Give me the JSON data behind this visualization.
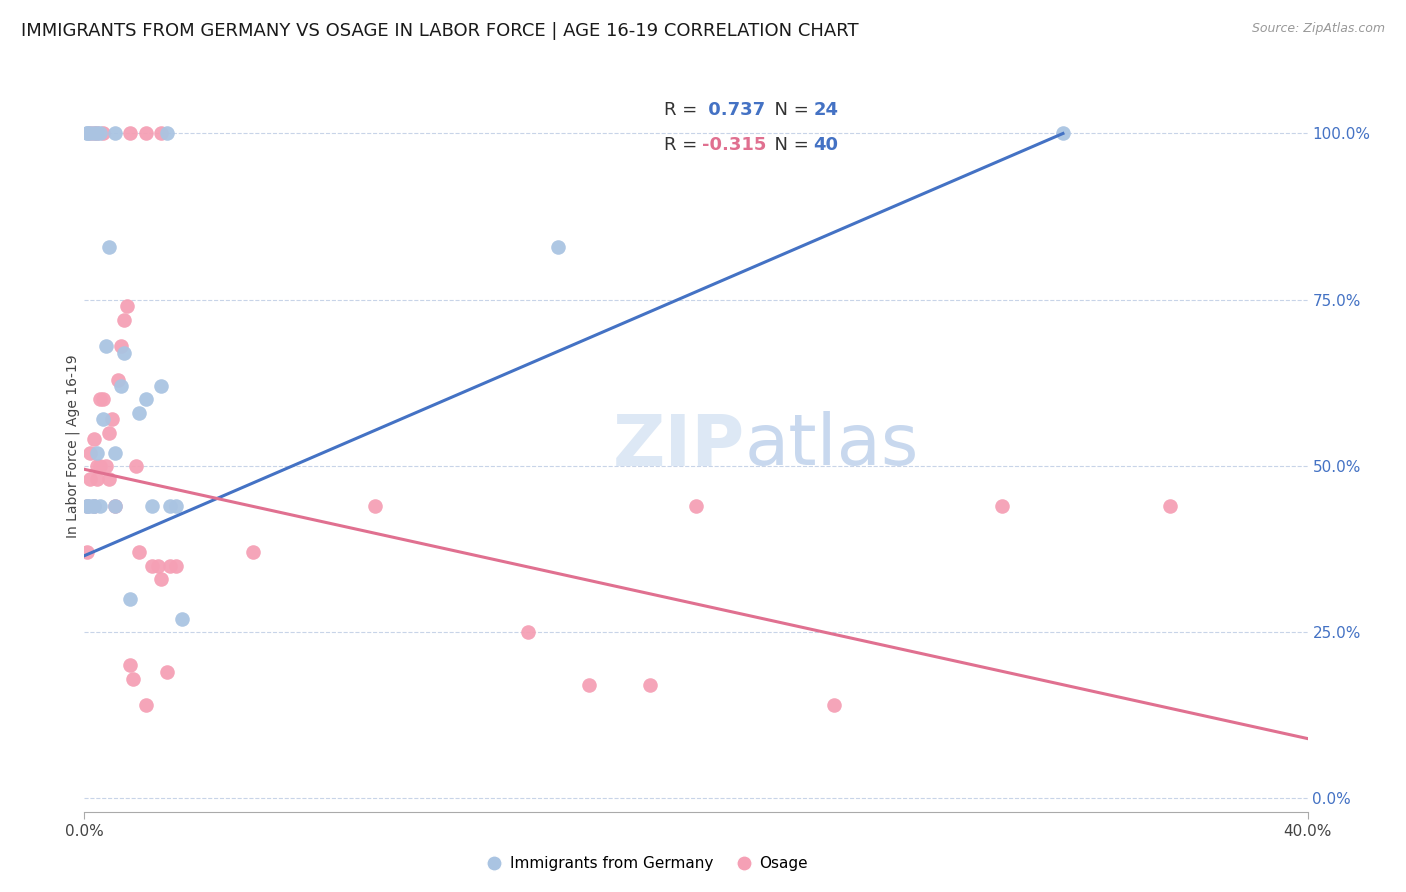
{
  "title": "IMMIGRANTS FROM GERMANY VS OSAGE IN LABOR FORCE | AGE 16-19 CORRELATION CHART",
  "source": "Source: ZipAtlas.com",
  "ylabel": "In Labor Force | Age 16-19",
  "xlim": [
    0.0,
    0.4
  ],
  "ylim": [
    -0.02,
    1.08
  ],
  "x_ticks": [
    0.0,
    0.4
  ],
  "x_tick_labels": [
    "0.0%",
    "40.0%"
  ],
  "right_y_ticks": [
    0.0,
    0.25,
    0.5,
    0.75,
    1.0
  ],
  "right_y_tick_labels": [
    "0.0%",
    "25.0%",
    "50.0%",
    "75.0%",
    "100.0%"
  ],
  "germany_color": "#aac4e2",
  "osage_color": "#f5a0b5",
  "germany_R": 0.737,
  "germany_N": 24,
  "osage_R": -0.315,
  "osage_N": 40,
  "germany_line_color": "#4472c4",
  "osage_line_color": "#e07090",
  "background_color": "#ffffff",
  "grid_color": "#c8d4e8",
  "title_fontsize": 13,
  "germany_x": [
    0.001,
    0.001,
    0.002,
    0.003,
    0.003,
    0.004,
    0.005,
    0.006,
    0.007,
    0.008,
    0.01,
    0.01,
    0.012,
    0.013,
    0.015,
    0.018,
    0.02,
    0.022,
    0.025,
    0.028,
    0.03,
    0.032,
    0.155,
    0.32
  ],
  "germany_y": [
    0.44,
    0.44,
    0.44,
    0.44,
    0.44,
    0.52,
    0.44,
    0.57,
    0.68,
    0.83,
    0.44,
    0.52,
    0.62,
    0.67,
    0.3,
    0.58,
    0.6,
    0.44,
    0.62,
    0.44,
    0.44,
    0.27,
    0.83,
    1.0
  ],
  "osage_x": [
    0.001,
    0.001,
    0.002,
    0.002,
    0.003,
    0.003,
    0.004,
    0.004,
    0.005,
    0.005,
    0.006,
    0.007,
    0.008,
    0.008,
    0.009,
    0.01,
    0.011,
    0.012,
    0.013,
    0.014,
    0.015,
    0.016,
    0.017,
    0.018,
    0.02,
    0.022,
    0.024,
    0.025,
    0.027,
    0.028,
    0.03,
    0.055,
    0.095,
    0.145,
    0.165,
    0.185,
    0.2,
    0.245,
    0.3,
    0.355
  ],
  "osage_y": [
    0.44,
    0.37,
    0.52,
    0.48,
    0.54,
    0.44,
    0.48,
    0.5,
    0.5,
    0.6,
    0.6,
    0.5,
    0.48,
    0.55,
    0.57,
    0.44,
    0.63,
    0.68,
    0.72,
    0.74,
    0.2,
    0.18,
    0.5,
    0.37,
    0.14,
    0.35,
    0.35,
    0.33,
    0.19,
    0.35,
    0.35,
    0.37,
    0.44,
    0.25,
    0.17,
    0.17,
    0.44,
    0.14,
    0.44,
    0.44
  ],
  "germany_line_x": [
    0.0,
    0.32
  ],
  "germany_line_y": [
    0.365,
    1.0
  ],
  "osage_line_x": [
    0.0,
    0.4
  ],
  "osage_line_y": [
    0.495,
    0.09
  ],
  "germany_top_x": [
    0.001,
    0.001,
    0.002,
    0.003,
    0.004,
    0.005,
    0.01,
    0.027
  ],
  "germany_top_y": [
    1.0,
    1.0,
    1.0,
    1.0,
    1.0,
    1.0,
    1.0,
    1.0
  ],
  "osage_top_x": [
    0.002,
    0.003,
    0.004,
    0.006,
    0.015,
    0.02,
    0.025
  ],
  "osage_top_y": [
    1.0,
    1.0,
    1.0,
    1.0,
    1.0,
    1.0,
    1.0
  ]
}
